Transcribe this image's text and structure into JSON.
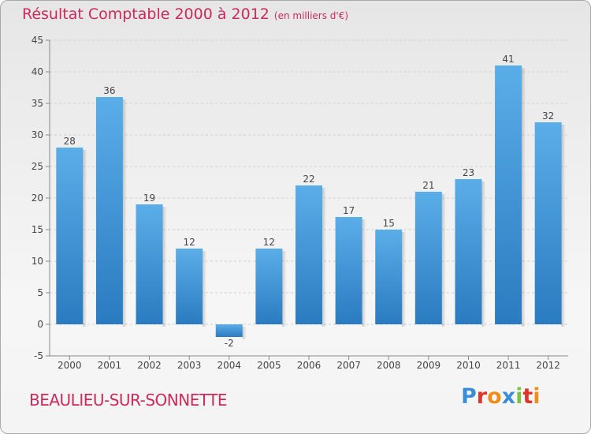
{
  "chart_data": {
    "type": "bar",
    "title": "Résultat Comptable 2000 à 2012",
    "subtitle": "(en milliers d'€)",
    "categories": [
      "2000",
      "2001",
      "2002",
      "2003",
      "2004",
      "2005",
      "2006",
      "2007",
      "2008",
      "2009",
      "2010",
      "2011",
      "2012"
    ],
    "values": [
      28,
      36,
      19,
      12,
      -2,
      12,
      22,
      17,
      15,
      21,
      23,
      41,
      32
    ],
    "ylim": [
      -5,
      45
    ],
    "yticks": [
      -5,
      0,
      5,
      10,
      15,
      20,
      25,
      30,
      35,
      40,
      45
    ],
    "grid": true,
    "bar_color_top": "#5aaee8",
    "bar_color_bottom": "#2a7bc0"
  },
  "place": "BEAULIEU-SUR-SONNETTE",
  "logo": {
    "text": "Proxiti",
    "letters": [
      {
        "ch": "P",
        "color": "#3a8ed8"
      },
      {
        "ch": "r",
        "color": "#e0342a"
      },
      {
        "ch": "o",
        "color": "#f08c1c"
      },
      {
        "ch": "x",
        "color": "#3a8ed8"
      },
      {
        "ch": "i",
        "color": "#7cc142"
      },
      {
        "ch": "t",
        "color": "#e0342a"
      },
      {
        "ch": "i",
        "color": "#f08c1c"
      }
    ]
  }
}
